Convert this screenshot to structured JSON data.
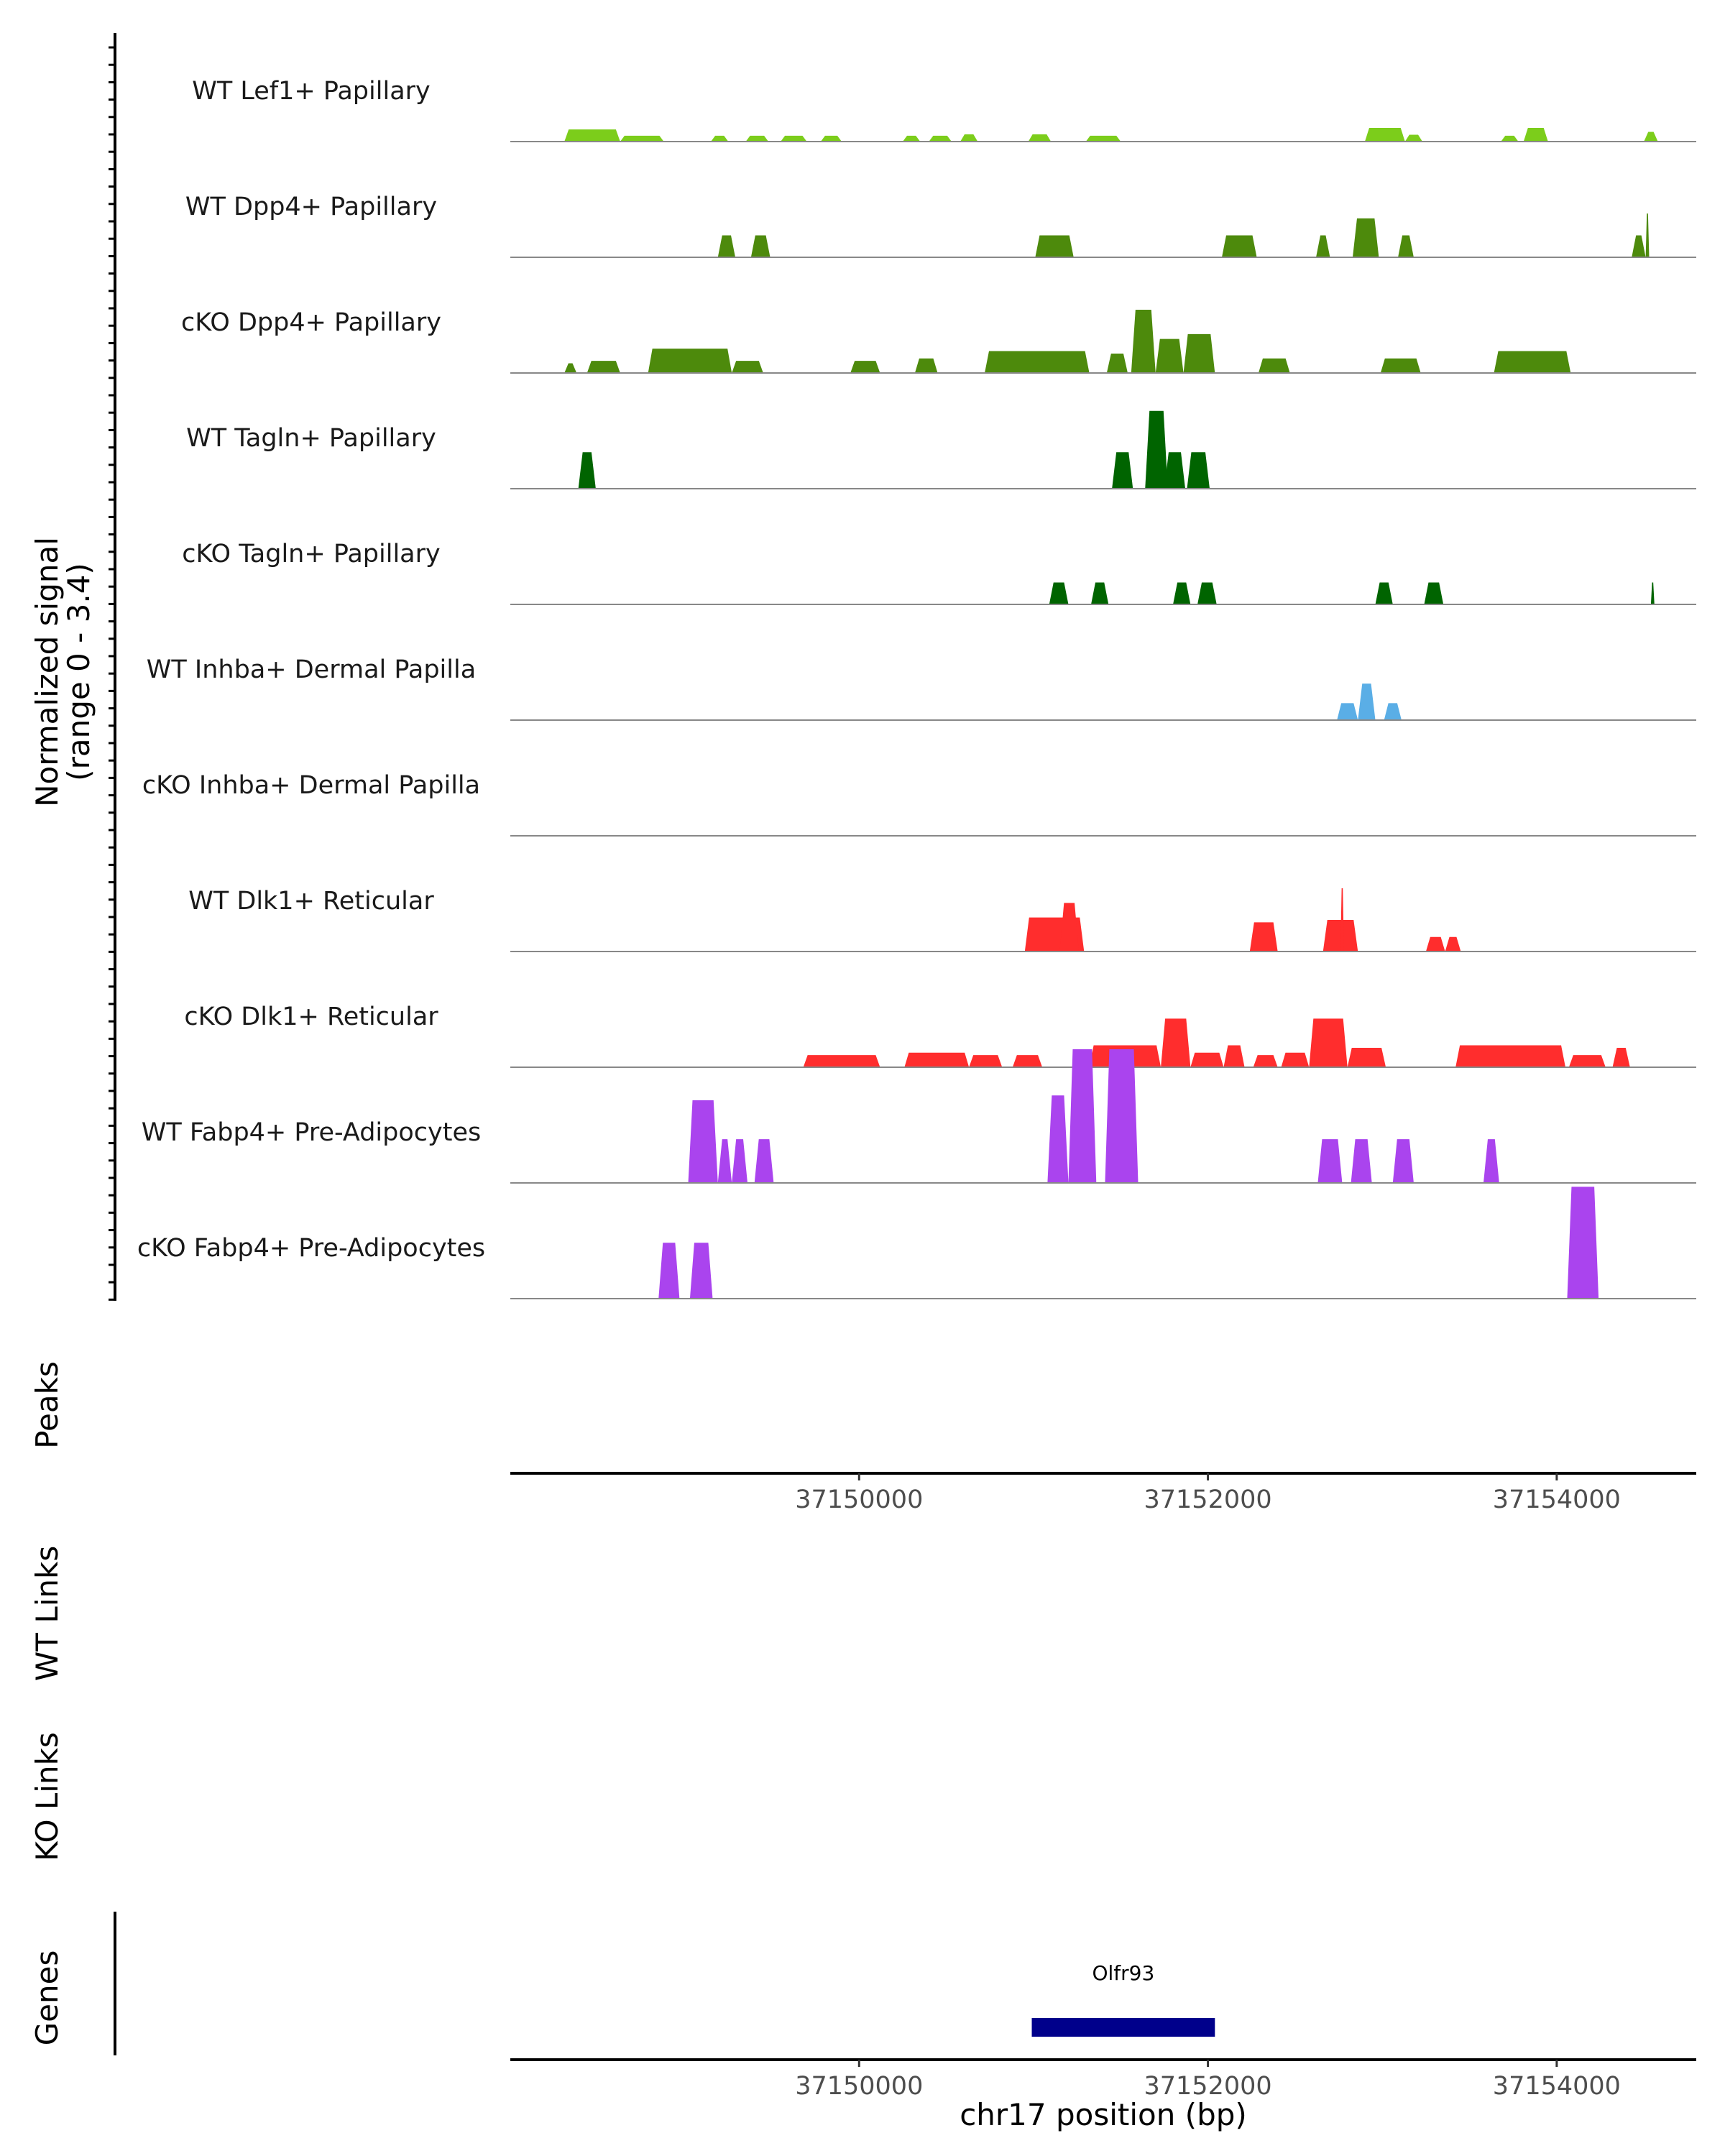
{
  "chart_data": {
    "type": "area",
    "subtype": "genome-coverage-track",
    "chromosome": "chr17",
    "xlim": [
      37148000,
      37154800
    ],
    "signal_range": [
      0,
      3.4
    ],
    "y_axis_title_line1": "Normalized signal",
    "y_axis_title_line2": "(range 0 - 3.4)",
    "x_axis_title": "chr17 position (bp)",
    "x_ticks": [
      37150000,
      37152000,
      37154000
    ],
    "x_tick_labels": [
      "37150000",
      "37152000",
      "37154000"
    ],
    "panel_labels": {
      "peaks": "Peaks",
      "wt_links": "WT Links",
      "ko_links": "KO Links",
      "genes": "Genes"
    },
    "tracks": [
      {
        "name": "WT Lef1+ Papillary",
        "color": "#7ccd1b",
        "segments": [
          [
            37148310,
            37148630,
            0.25
          ],
          [
            37148630,
            37148880,
            0.12
          ],
          [
            37149150,
            37149250,
            0.12
          ],
          [
            37149350,
            37149480,
            0.12
          ],
          [
            37149550,
            37149700,
            0.12
          ],
          [
            37149780,
            37149900,
            0.12
          ],
          [
            37150250,
            37150350,
            0.12
          ],
          [
            37150400,
            37150530,
            0.12
          ],
          [
            37150580,
            37150680,
            0.15
          ],
          [
            37150970,
            37151100,
            0.15
          ],
          [
            37151300,
            37151500,
            0.12
          ],
          [
            37152900,
            37153130,
            0.28
          ],
          [
            37153130,
            37153230,
            0.14
          ],
          [
            37153680,
            37153780,
            0.12
          ],
          [
            37153810,
            37153950,
            0.28
          ],
          [
            37154500,
            37154580,
            0.2
          ]
        ]
      },
      {
        "name": "WT Dpp4+ Papillary",
        "color": "#4d8a0c",
        "segments": [
          [
            37149190,
            37149290,
            0.45
          ],
          [
            37149380,
            37149490,
            0.45
          ],
          [
            37151010,
            37151230,
            0.45
          ],
          [
            37152080,
            37152280,
            0.45
          ],
          [
            37152620,
            37152700,
            0.45
          ],
          [
            37152830,
            37152980,
            0.8
          ],
          [
            37153090,
            37153180,
            0.45
          ],
          [
            37154430,
            37154510,
            0.45
          ],
          [
            37154510,
            37154530,
            0.9
          ]
        ]
      },
      {
        "name": "cKO Dpp4+ Papillary",
        "color": "#4d8a0c",
        "segments": [
          [
            37148310,
            37148380,
            0.2
          ],
          [
            37148440,
            37148630,
            0.25
          ],
          [
            37148790,
            37149270,
            0.5
          ],
          [
            37149270,
            37149450,
            0.25
          ],
          [
            37149950,
            37150120,
            0.25
          ],
          [
            37150320,
            37150450,
            0.3
          ],
          [
            37150720,
            37151320,
            0.45
          ],
          [
            37151420,
            37151540,
            0.4
          ],
          [
            37151560,
            37151700,
            1.3
          ],
          [
            37151700,
            37151860,
            0.7
          ],
          [
            37151860,
            37152040,
            0.8
          ],
          [
            37152290,
            37152470,
            0.3
          ],
          [
            37152990,
            37153220,
            0.3
          ],
          [
            37153640,
            37154080,
            0.45
          ]
        ]
      },
      {
        "name": "WT Tagln+ Papillary",
        "color": "#006400",
        "segments": [
          [
            37148390,
            37148490,
            0.75
          ],
          [
            37151450,
            37151570,
            0.75
          ],
          [
            37151640,
            37151770,
            1.6
          ],
          [
            37151750,
            37151870,
            0.75
          ],
          [
            37151880,
            37152010,
            0.75
          ]
        ]
      },
      {
        "name": "cKO Tagln+ Papillary",
        "color": "#006400",
        "segments": [
          [
            37151090,
            37151200,
            0.45
          ],
          [
            37151330,
            37151430,
            0.45
          ],
          [
            37151800,
            37151900,
            0.45
          ],
          [
            37151940,
            37152050,
            0.45
          ],
          [
            37152960,
            37153060,
            0.45
          ],
          [
            37153240,
            37153350,
            0.45
          ],
          [
            37154540,
            37154560,
            0.45
          ]
        ]
      },
      {
        "name": "WT Inhba+ Dermal Papilla",
        "color": "#5aaee6",
        "segments": [
          [
            37152740,
            37152860,
            0.35
          ],
          [
            37152860,
            37152960,
            0.75
          ],
          [
            37153010,
            37153110,
            0.35
          ]
        ]
      },
      {
        "name": "cKO Inhba+ Dermal Papilla",
        "color": "#5aaee6",
        "segments": []
      },
      {
        "name": "WT Dlk1+ Reticular",
        "color": "#ff2d2d",
        "segments": [
          [
            37150950,
            37151290,
            0.7
          ],
          [
            37151150,
            37151260,
            1.0
          ],
          [
            37152240,
            37152400,
            0.6
          ],
          [
            37152660,
            37152860,
            0.65
          ],
          [
            37152760,
            37152780,
            1.3
          ],
          [
            37153250,
            37153360,
            0.3
          ],
          [
            37153360,
            37153450,
            0.3
          ]
        ]
      },
      {
        "name": "cKO Dlk1+ Reticular",
        "color": "#ff2d2d",
        "segments": [
          [
            37149680,
            37150120,
            0.25
          ],
          [
            37150260,
            37150630,
            0.3
          ],
          [
            37150630,
            37150820,
            0.25
          ],
          [
            37150880,
            37151050,
            0.25
          ],
          [
            37151320,
            37151730,
            0.45
          ],
          [
            37151730,
            37151900,
            1.0
          ],
          [
            37151900,
            37152090,
            0.3
          ],
          [
            37152090,
            37152210,
            0.45
          ],
          [
            37152260,
            37152400,
            0.25
          ],
          [
            37152420,
            37152580,
            0.3
          ],
          [
            37152580,
            37152800,
            1.0
          ],
          [
            37152800,
            37153020,
            0.4
          ],
          [
            37153420,
            37154050,
            0.45
          ],
          [
            37154070,
            37154280,
            0.25
          ],
          [
            37154320,
            37154420,
            0.4
          ]
        ]
      },
      {
        "name": "WT Fabp4+ Pre-Adipocytes",
        "color": "#aa44ee",
        "segments": [
          [
            37149020,
            37149190,
            1.7
          ],
          [
            37149190,
            37149270,
            0.9
          ],
          [
            37149270,
            37149360,
            0.9
          ],
          [
            37149400,
            37149510,
            0.9
          ],
          [
            37151080,
            37151200,
            1.8
          ],
          [
            37151200,
            37151360,
            2.75
          ],
          [
            37151410,
            37151600,
            2.75
          ],
          [
            37152630,
            37152770,
            0.9
          ],
          [
            37152820,
            37152940,
            0.9
          ],
          [
            37153060,
            37153180,
            0.9
          ],
          [
            37153580,
            37153670,
            0.9
          ]
        ]
      },
      {
        "name": "cKO Fabp4+ Pre-Adipocytes",
        "color": "#aa44ee",
        "segments": [
          [
            37148850,
            37148970,
            1.15
          ],
          [
            37149030,
            37149160,
            1.15
          ],
          [
            37154060,
            37154240,
            2.3
          ]
        ]
      }
    ],
    "peaks": [],
    "wt_links": [],
    "ko_links": [],
    "genes": [
      {
        "name": "Olfr93",
        "start": 37150990,
        "end": 37152040,
        "color": "#00008b"
      }
    ]
  }
}
